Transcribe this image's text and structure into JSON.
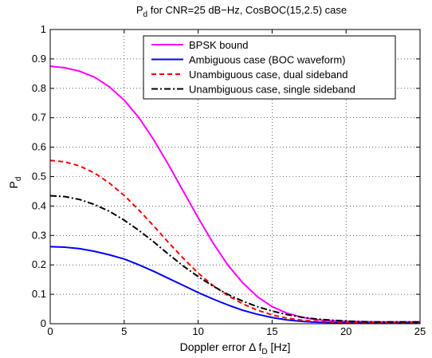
{
  "chart_data": {
    "type": "line",
    "title": {
      "base": "P",
      "sub": "d",
      "rest": " for CNR=25 dB−Hz, CosBOC(15,2.5) case"
    },
    "xlabel": {
      "base": "Doppler error Δ f",
      "sub": "D",
      "rest": " [Hz]"
    },
    "ylabel": {
      "base": "P",
      "sub": "d"
    },
    "xlim": [
      0,
      25
    ],
    "ylim": [
      0,
      1
    ],
    "x_ticks": [
      "0",
      "5",
      "10",
      "15",
      "20",
      "25"
    ],
    "y_ticks": [
      "0",
      "0.1",
      "0.2",
      "0.3",
      "0.4",
      "0.5",
      "0.6",
      "0.7",
      "0.8",
      "0.9",
      "1"
    ],
    "grid": true,
    "legend_position": "top-right",
    "x": [
      0,
      1,
      2,
      3,
      4,
      5,
      6,
      7,
      8,
      9,
      10,
      11,
      12,
      13,
      14,
      15,
      16,
      17,
      18,
      19,
      20,
      21,
      22,
      23,
      24,
      25
    ],
    "series": [
      {
        "name": "BPSK bound",
        "color": "#ff00ff",
        "dash": "solid",
        "values": [
          0.875,
          0.87,
          0.858,
          0.838,
          0.805,
          0.76,
          0.7,
          0.625,
          0.54,
          0.45,
          0.36,
          0.275,
          0.2,
          0.14,
          0.092,
          0.058,
          0.036,
          0.022,
          0.014,
          0.01,
          0.008,
          0.007,
          0.006,
          0.006,
          0.006,
          0.006
        ]
      },
      {
        "name": "Ambiguous case (BOC waveform)",
        "color": "#0000ff",
        "dash": "solid",
        "values": [
          0.262,
          0.26,
          0.255,
          0.246,
          0.234,
          0.22,
          0.2,
          0.178,
          0.154,
          0.13,
          0.106,
          0.084,
          0.064,
          0.046,
          0.032,
          0.021,
          0.013,
          0.008,
          0.005,
          0.004,
          0.003,
          0.003,
          0.003,
          0.003,
          0.003,
          0.003
        ]
      },
      {
        "name": "Unambiguous case, dual sideband",
        "color": "#ff0000",
        "dash": "dashed",
        "values": [
          0.555,
          0.55,
          0.536,
          0.512,
          0.478,
          0.436,
          0.386,
          0.332,
          0.276,
          0.222,
          0.172,
          0.13,
          0.096,
          0.068,
          0.046,
          0.03,
          0.019,
          0.012,
          0.008,
          0.006,
          0.005,
          0.004,
          0.004,
          0.004,
          0.004,
          0.004
        ]
      },
      {
        "name": "Unambiguous case, single sideband",
        "color": "#000000",
        "dash": "dashdot",
        "values": [
          0.435,
          0.432,
          0.422,
          0.405,
          0.382,
          0.352,
          0.317,
          0.278,
          0.236,
          0.196,
          0.16,
          0.128,
          0.1,
          0.077,
          0.058,
          0.043,
          0.031,
          0.022,
          0.016,
          0.012,
          0.009,
          0.007,
          0.006,
          0.006,
          0.006,
          0.006
        ]
      }
    ]
  }
}
